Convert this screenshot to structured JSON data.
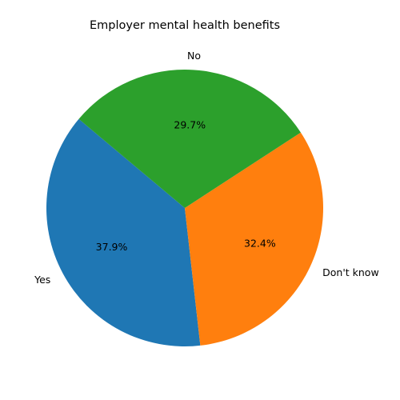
{
  "chart_data": {
    "type": "pie",
    "title": "Employer mental health benefits",
    "categories": [
      "Yes",
      "Don't know",
      "No"
    ],
    "values": [
      37.9,
      32.4,
      29.7
    ],
    "value_labels": [
      "37.9%",
      "32.4%",
      "29.7%"
    ],
    "colors": [
      "#1f77b4",
      "#ff7f0e",
      "#2ca02c"
    ],
    "start_angle_deg": 140,
    "direction": "counterclockwise"
  }
}
